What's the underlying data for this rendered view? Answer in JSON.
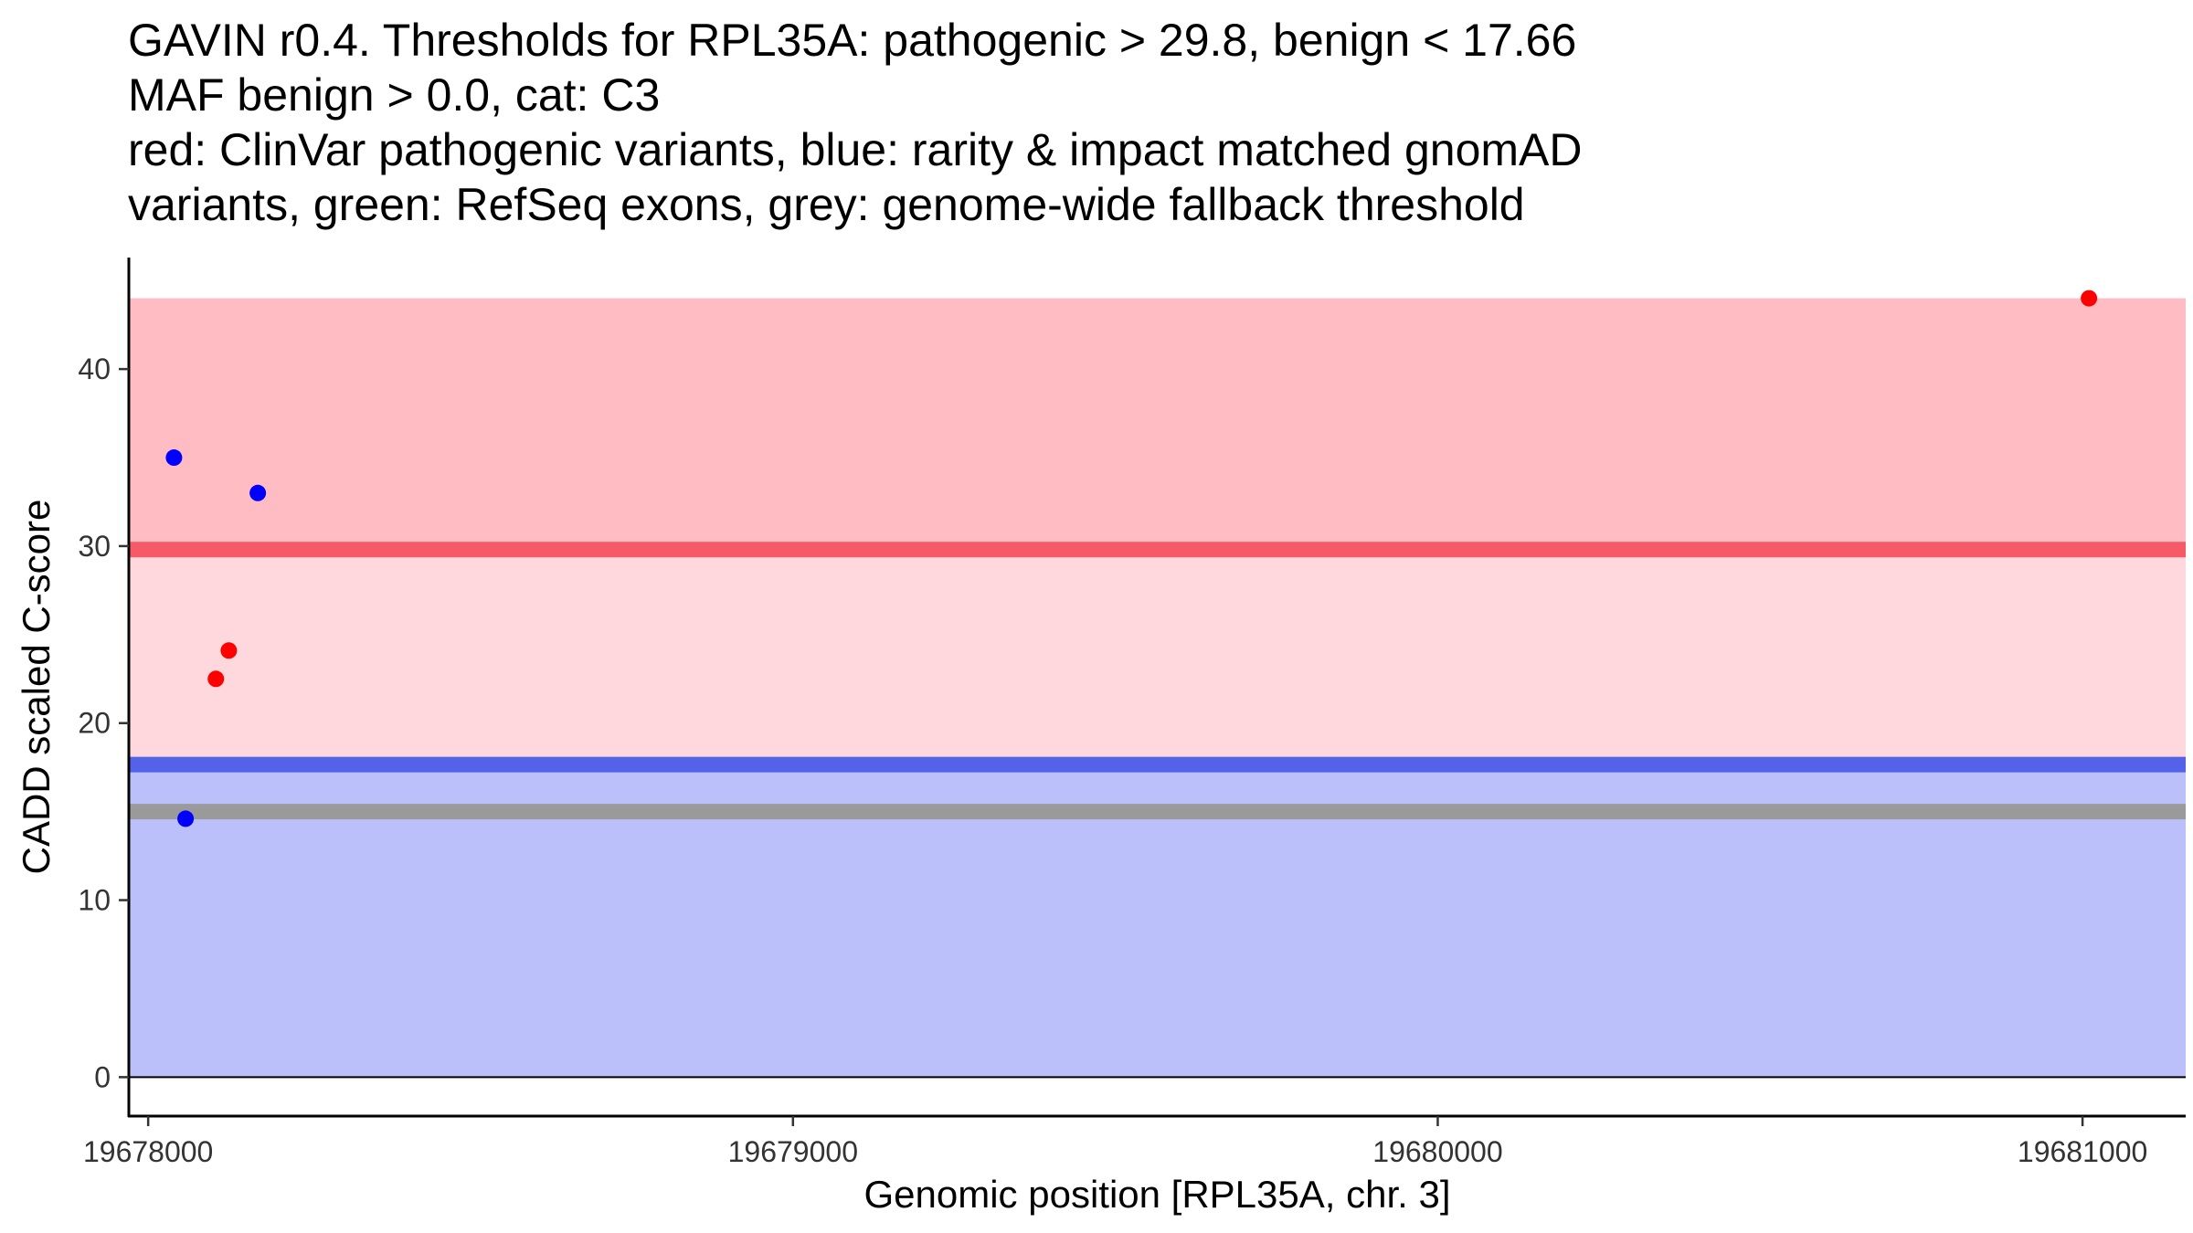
{
  "chart_data": {
    "type": "scatter",
    "title_lines": [
      "GAVIN r0.4. Thresholds for RPL35A: pathogenic > 29.8, benign < 17.66",
      "MAF benign > 0.0, cat: C3",
      "red: ClinVar pathogenic variants, blue: rarity & impact matched gnomAD",
      "variants, green: RefSeq exons, grey: genome-wide fallback threshold"
    ],
    "xlabel": "Genomic position [RPL35A, chr. 3]",
    "ylabel": "CADD scaled C-score",
    "xlim": [
      19677970,
      19681160
    ],
    "ylim": [
      -2.2,
      46.3
    ],
    "x_ticks": [
      19678000,
      19679000,
      19680000,
      19681000
    ],
    "y_ticks": [
      0,
      10,
      20,
      30,
      40
    ],
    "bands": [
      {
        "name": "pathogenic-region",
        "y0": 29.8,
        "y1": 44.0,
        "color": "#FFBDC3"
      },
      {
        "name": "uncertain-region",
        "y0": 17.66,
        "y1": 29.8,
        "color": "#FFD8DD"
      },
      {
        "name": "benign-region",
        "y0": 0,
        "y1": 17.66,
        "color": "#BBC0FA"
      }
    ],
    "thresholds": [
      {
        "name": "pathogenic-threshold",
        "y": 29.8,
        "color": "#F65A66"
      },
      {
        "name": "benign-threshold",
        "y": 17.66,
        "color": "#5462EA"
      },
      {
        "name": "fallback-threshold",
        "y": 15.0,
        "color": "#9A9A9A"
      }
    ],
    "series": [
      {
        "name": "ClinVar pathogenic variants",
        "color": "#FF0000",
        "points": [
          {
            "x": 19678105,
            "y": 22.5
          },
          {
            "x": 19678125,
            "y": 24.1
          },
          {
            "x": 19681010,
            "y": 44.0
          }
        ]
      },
      {
        "name": "gnomAD matched variants",
        "color": "#0000FF",
        "points": [
          {
            "x": 19678040,
            "y": 35.0
          },
          {
            "x": 19678058,
            "y": 14.6
          },
          {
            "x": 19678170,
            "y": 33.0
          }
        ]
      }
    ]
  }
}
